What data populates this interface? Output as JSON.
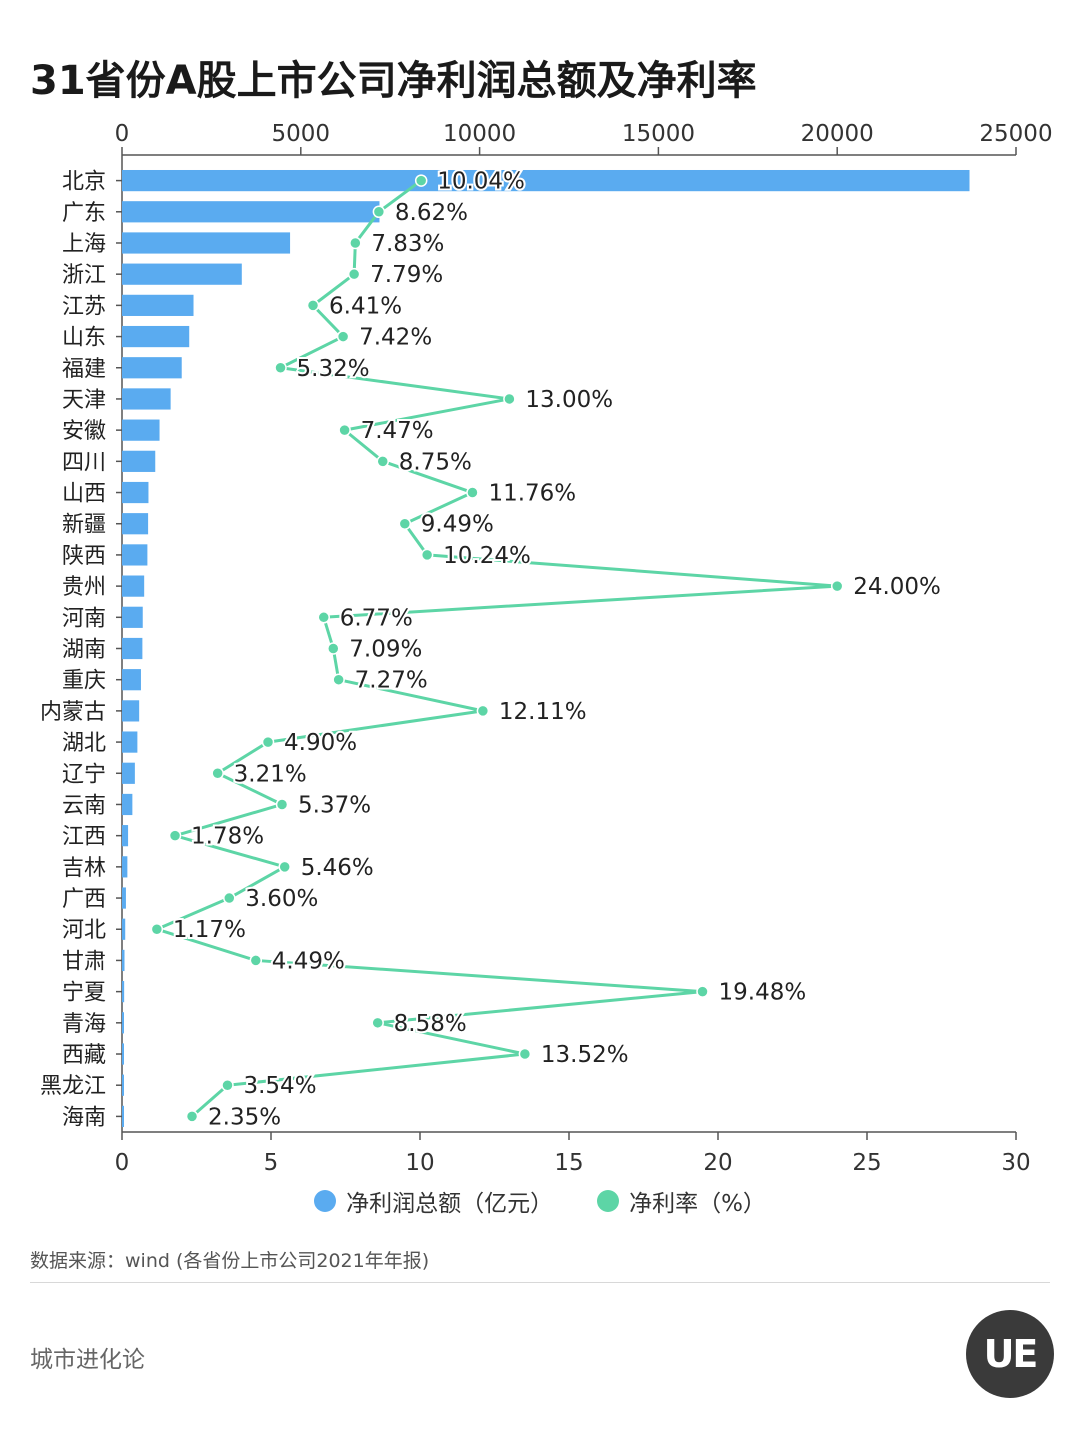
{
  "title": "31省份A股上市公司净利润总额及净利率",
  "legend": {
    "bar_label": "净利润总额（亿元）",
    "line_label": "净利率（%）"
  },
  "source": "数据来源：wind (各省份上市公司2021年年报)",
  "brand": "城市进化论",
  "logo_text": "UE",
  "colors": {
    "bar": "#5aabf0",
    "line": "#5dd5a6"
  },
  "chart_data": {
    "type": "bar",
    "title": "31省份A股上市公司净利润总额及净利率",
    "orientation": "horizontal",
    "categories": [
      "北京",
      "广东",
      "上海",
      "浙江",
      "江苏",
      "山东",
      "福建",
      "天津",
      "安徽",
      "四川",
      "山西",
      "新疆",
      "陕西",
      "贵州",
      "河南",
      "湖南",
      "重庆",
      "内蒙古",
      "湖北",
      "辽宁",
      "云南",
      "江西",
      "吉林",
      "广西",
      "河北",
      "甘肃",
      "宁夏",
      "青海",
      "西藏",
      "黑龙江",
      "海南"
    ],
    "series": [
      {
        "name": "净利润总额（亿元）",
        "type": "bar",
        "axis": "top",
        "values": [
          23700,
          7200,
          4700,
          3350,
          2000,
          1880,
          1670,
          1360,
          1050,
          930,
          740,
          730,
          710,
          620,
          580,
          570,
          530,
          480,
          430,
          360,
          290,
          170,
          150,
          110,
          90,
          70,
          60,
          50,
          40,
          35,
          30
        ]
      },
      {
        "name": "净利率（%）",
        "type": "line",
        "axis": "bottom",
        "values": [
          10.04,
          8.62,
          7.83,
          7.79,
          6.41,
          7.42,
          5.32,
          13.0,
          7.47,
          8.75,
          11.76,
          9.49,
          10.24,
          24.0,
          6.77,
          7.09,
          7.27,
          12.11,
          4.9,
          3.21,
          5.37,
          1.78,
          5.46,
          3.6,
          1.17,
          4.49,
          19.48,
          8.58,
          13.52,
          3.54,
          2.35
        ],
        "labels": [
          "10.04%",
          "8.62%",
          "7.83%",
          "7.79%",
          "6.41%",
          "7.42%",
          "5.32%",
          "13.00%",
          "7.47%",
          "8.75%",
          "11.76%",
          "9.49%",
          "10.24%",
          "24.00%",
          "6.77%",
          "7.09%",
          "7.27%",
          "12.11%",
          "4.90%",
          "3.21%",
          "5.37%",
          "1.78%",
          "5.46%",
          "3.60%",
          "1.17%",
          "4.49%",
          "19.48%",
          "8.58%",
          "13.52%",
          "3.54%",
          "2.35%"
        ]
      }
    ],
    "x_top": {
      "range": [
        0,
        25000
      ],
      "ticks": [
        "0",
        "5000",
        "10000",
        "15000",
        "20000",
        "25000"
      ]
    },
    "x_bottom": {
      "range": [
        0,
        30
      ],
      "ticks": [
        "0",
        "5",
        "10",
        "15",
        "20",
        "25",
        "30"
      ]
    },
    "grid": false,
    "legend_position": "bottom"
  }
}
